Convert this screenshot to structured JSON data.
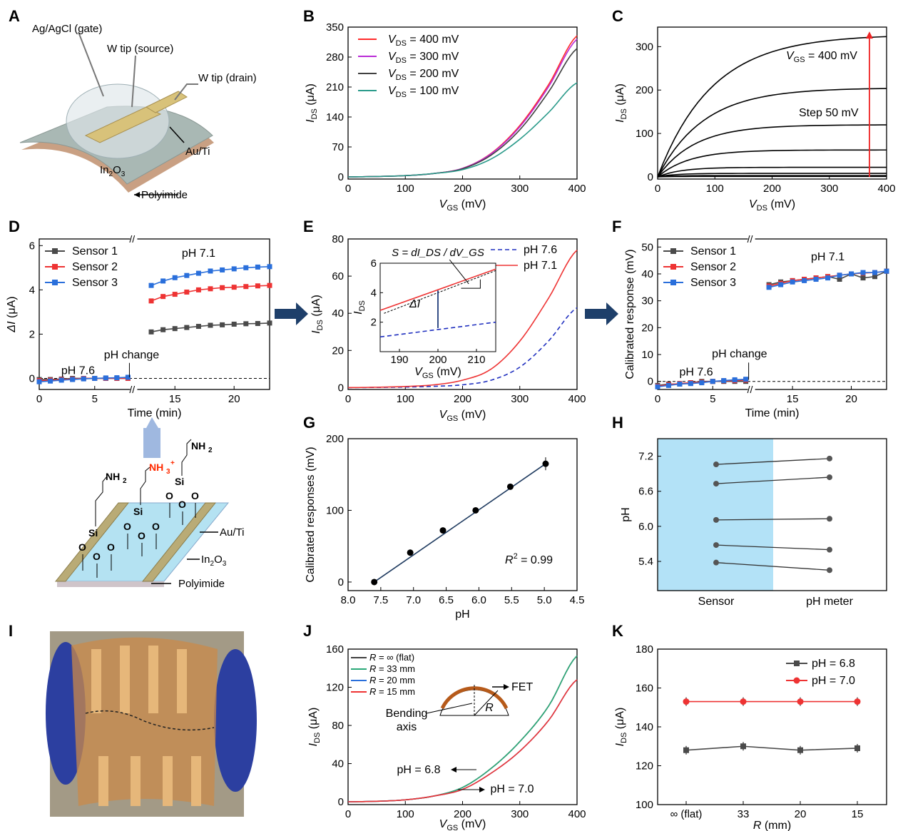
{
  "figure": {
    "panel_letters": [
      "A",
      "B",
      "C",
      "D",
      "E",
      "F",
      "G",
      "H",
      "I",
      "J",
      "K"
    ]
  },
  "panelA": {
    "labels": [
      "Ag/AgCl (gate)",
      "W tip (source)",
      "W tip (drain)",
      "Au/Ti",
      "In",
      "2",
      "O",
      "3",
      "Polyimide"
    ],
    "colors": {
      "substrate": "#c9a083",
      "film": "#a9b8b4",
      "gold": "#d8c27a"
    }
  },
  "panelD_schematic": {
    "labels": [
      "NH",
      "2",
      "NH",
      "3",
      "+",
      "Si",
      "O",
      "Au/Ti",
      "In",
      "2",
      "O",
      "3",
      "Polyimide"
    ],
    "colors": {
      "charged": "#ff2a00",
      "electrode": "#b9ab76",
      "film": "#b4e2f2"
    }
  },
  "chart_data": [
    {
      "id": "B",
      "type": "line",
      "xlabel": [
        "V",
        "GS",
        " (mV)"
      ],
      "ylabel": [
        "I",
        "DS",
        " (μA)"
      ],
      "xlim": [
        0,
        400
      ],
      "ylim": [
        -5,
        350
      ],
      "xticks": [
        0,
        100,
        200,
        300,
        400
      ],
      "yticks": [
        0,
        70,
        140,
        210,
        280,
        350
      ],
      "series": [
        {
          "name": [
            "V",
            "DS",
            " = 400 mV"
          ],
          "color": "#ff2b2b",
          "x": [
            0,
            50,
            100,
            150,
            200,
            250,
            300,
            350,
            400
          ],
          "y": [
            0,
            1,
            3,
            8,
            20,
            55,
            120,
            215,
            330
          ]
        },
        {
          "name": [
            "V",
            "DS",
            " = 300 mV"
          ],
          "color": "#b92bd6",
          "x": [
            0,
            50,
            100,
            150,
            200,
            250,
            300,
            350,
            400
          ],
          "y": [
            0,
            1,
            3,
            8,
            20,
            54,
            117,
            210,
            322
          ]
        },
        {
          "name": [
            "V",
            "DS",
            " = 200 mV"
          ],
          "color": "#404040",
          "x": [
            0,
            50,
            100,
            150,
            200,
            250,
            300,
            350,
            400
          ],
          "y": [
            0,
            1,
            3,
            8,
            19,
            51,
            110,
            198,
            300
          ]
        },
        {
          "name": [
            "V",
            "DS",
            " = 100 mV"
          ],
          "color": "#2a9a8a",
          "x": [
            0,
            50,
            100,
            150,
            200,
            250,
            300,
            350,
            400
          ],
          "y": [
            0,
            1,
            3,
            8,
            17,
            42,
            88,
            150,
            220
          ]
        }
      ]
    },
    {
      "id": "C",
      "type": "line",
      "xlabel": [
        "V",
        "DS",
        " (mV)"
      ],
      "ylabel": [
        "I",
        "DS",
        " (μA)"
      ],
      "xlim": [
        0,
        400
      ],
      "ylim": [
        -5,
        345
      ],
      "xticks": [
        0,
        100,
        200,
        300,
        400
      ],
      "yticks": [
        0,
        100,
        200,
        300
      ],
      "annotations": [
        [
          "V",
          "GS",
          " = 400 mV"
        ],
        [
          "Step 50 mV"
        ]
      ],
      "arrow_x": 370,
      "series": [
        {
          "name": "",
          "color": "#000000",
          "sat": 328,
          "k": 95
        },
        {
          "name": "",
          "color": "#000000",
          "sat": 205,
          "k": 80
        },
        {
          "name": "",
          "color": "#000000",
          "sat": 120,
          "k": 65
        },
        {
          "name": "",
          "color": "#000000",
          "sat": 62,
          "k": 55
        },
        {
          "name": "",
          "color": "#000000",
          "sat": 22,
          "k": 40
        },
        {
          "name": "",
          "color": "#000000",
          "sat": 8,
          "k": 30
        },
        {
          "name": "",
          "color": "#000000",
          "sat": 3,
          "k": 25
        },
        {
          "name": "",
          "color": "#000000",
          "sat": 1,
          "k": 20
        }
      ]
    },
    {
      "id": "D",
      "type": "scatter",
      "xlabel": [
        "Time (min)"
      ],
      "ylabel": [
        "ΔI",
        "",
        " (μA)"
      ],
      "xlim": [
        0,
        23
      ],
      "ylim": [
        -0.5,
        6.3
      ],
      "xticks": [
        0,
        5,
        15,
        20
      ],
      "yticks": [
        0,
        2,
        4,
        6
      ],
      "annotations": [
        "pH 7.6",
        "pH 7.1",
        "pH change"
      ],
      "series": [
        {
          "name": "Sensor 1",
          "color": "#4a4a4a",
          "x": [
            0,
            1,
            2,
            3,
            4,
            5,
            6,
            7,
            8,
            13,
            14,
            15,
            16,
            17,
            18,
            19,
            20,
            21,
            22,
            23
          ],
          "y": [
            -0.05,
            -0.05,
            -0.03,
            0,
            0,
            0,
            0,
            0,
            0,
            2.1,
            2.2,
            2.25,
            2.3,
            2.35,
            2.4,
            2.42,
            2.45,
            2.47,
            2.48,
            2.5
          ]
        },
        {
          "name": "Sensor 2",
          "color": "#ee3333",
          "x": [
            0,
            1,
            2,
            3,
            4,
            5,
            6,
            7,
            8,
            13,
            14,
            15,
            16,
            17,
            18,
            19,
            20,
            21,
            22,
            23
          ],
          "y": [
            -0.1,
            -0.08,
            -0.05,
            -0.03,
            0,
            0,
            0,
            0,
            0,
            3.5,
            3.7,
            3.8,
            3.9,
            4.0,
            4.05,
            4.1,
            4.12,
            4.15,
            4.18,
            4.2
          ]
        },
        {
          "name": "Sensor 3",
          "color": "#2a6fdb",
          "x": [
            0,
            1,
            2,
            3,
            4,
            5,
            6,
            7,
            8,
            13,
            14,
            15,
            16,
            17,
            18,
            19,
            20,
            21,
            22,
            23
          ],
          "y": [
            -0.15,
            -0.12,
            -0.08,
            -0.05,
            -0.02,
            0,
            0.02,
            0.03,
            0.05,
            4.2,
            4.4,
            4.55,
            4.65,
            4.75,
            4.85,
            4.9,
            4.95,
            5.0,
            5.03,
            5.05
          ]
        }
      ]
    },
    {
      "id": "E",
      "type": "line",
      "xlabel": [
        "V",
        "GS",
        " (mV)"
      ],
      "ylabel": [
        "I",
        "DS",
        " (μA)"
      ],
      "xlim": [
        0,
        400
      ],
      "ylim": [
        -1,
        80
      ],
      "xticks": [
        0,
        100,
        200,
        300,
        400
      ],
      "yticks": [
        0,
        20,
        40,
        60,
        80
      ],
      "series": [
        {
          "name": "pH 7.6",
          "color": "#1f2fbf",
          "dash": true,
          "x": [
            0,
            50,
            100,
            150,
            200,
            250,
            300,
            350,
            400
          ],
          "y": [
            0,
            0.1,
            0.3,
            0.7,
            1.5,
            4,
            11,
            25,
            43
          ]
        },
        {
          "name": "pH 7.1",
          "color": "#ee3333",
          "dash": false,
          "x": [
            0,
            50,
            100,
            150,
            200,
            250,
            300,
            350,
            400
          ],
          "y": [
            0,
            0.2,
            0.6,
            1.5,
            4,
            10,
            25,
            48,
            74
          ]
        }
      ],
      "inset": {
        "xlim": [
          185,
          215
        ],
        "ylim": [
          0,
          6
        ],
        "xticks": [
          190,
          200,
          210
        ],
        "yticks": [
          0,
          2,
          4,
          6
        ],
        "xlabel": [
          "V",
          "GS",
          " (mV)"
        ],
        "ylabel": [
          "I",
          "DS",
          ""
        ],
        "equation": "S = dI_DS / dV_GS",
        "delta_label": "ΔI",
        "red": {
          "x": [
            185,
            215
          ],
          "y": [
            2.8,
            5.6
          ]
        },
        "blue": {
          "x": [
            185,
            215
          ],
          "y": [
            1.0,
            2.0
          ]
        }
      }
    },
    {
      "id": "F",
      "type": "scatter",
      "xlabel": [
        "Time (min)"
      ],
      "ylabel": [
        "Calibrated response  (mV)"
      ],
      "xlim": [
        0,
        23
      ],
      "ylim": [
        -3,
        53
      ],
      "xticks": [
        0,
        5,
        15,
        20
      ],
      "yticks": [
        0,
        10,
        20,
        30,
        40,
        50
      ],
      "annotations": [
        "pH 7.6",
        "pH 7.1",
        "pH change"
      ],
      "series": [
        {
          "name": "Sensor 1",
          "color": "#4a4a4a",
          "x": [
            0,
            1,
            2,
            3,
            4,
            5,
            6,
            7,
            8,
            13,
            14,
            15,
            16,
            17,
            18,
            19,
            20,
            21,
            22,
            23
          ],
          "y": [
            -1.5,
            -1,
            -1,
            -0.5,
            0,
            0,
            0,
            0,
            0,
            36,
            37,
            37.5,
            38,
            38.5,
            39,
            38,
            40,
            38.5,
            39,
            41
          ]
        },
        {
          "name": "Sensor 2",
          "color": "#ee3333",
          "x": [
            0,
            1,
            2,
            3,
            4,
            5,
            6,
            7,
            8,
            13,
            14,
            15,
            16,
            17,
            18,
            19,
            20,
            21,
            22,
            23
          ],
          "y": [
            -1.8,
            -1.2,
            -0.8,
            -0.5,
            -0.3,
            0,
            0.2,
            0.3,
            0.5,
            35.5,
            36.5,
            37.5,
            38,
            38.5,
            39,
            39.5,
            40,
            40.3,
            40.5,
            41
          ]
        },
        {
          "name": "Sensor 3",
          "color": "#2a6fdb",
          "x": [
            0,
            1,
            2,
            3,
            4,
            5,
            6,
            7,
            8,
            13,
            14,
            15,
            16,
            17,
            18,
            19,
            20,
            21,
            22,
            23
          ],
          "y": [
            -2,
            -1.5,
            -1,
            -0.8,
            -0.5,
            0,
            0.3,
            0.6,
            0.8,
            35,
            36,
            37,
            37.5,
            38,
            38.5,
            39.5,
            40,
            40.5,
            40.5,
            41
          ]
        }
      ]
    },
    {
      "id": "G",
      "type": "scatter",
      "xlabel": [
        "pH"
      ],
      "ylabel": [
        "Calibrated responses (mV)"
      ],
      "xlim": [
        8.0,
        4.5
      ],
      "ylim": [
        -12,
        200
      ],
      "xticks": [
        8.0,
        7.5,
        7.0,
        6.5,
        6.0,
        5.5,
        5.0,
        4.5
      ],
      "yticks": [
        0,
        100,
        200
      ],
      "r2": [
        "R",
        "2",
        " = 0.99"
      ],
      "fit": {
        "x": [
          7.6,
          4.98
        ],
        "y": [
          0,
          165
        ],
        "color": "#1e3a5f"
      },
      "points": {
        "x": [
          7.6,
          7.05,
          6.55,
          6.05,
          5.52,
          4.98
        ],
        "y": [
          0,
          41,
          72,
          100,
          133,
          165
        ],
        "err": [
          3,
          2,
          2,
          2,
          3,
          9
        ]
      }
    },
    {
      "id": "H",
      "type": "scatter",
      "xlabel": [
        ""
      ],
      "ylabel": [
        "pH"
      ],
      "ylim": [
        4.9,
        7.5
      ],
      "yticks": [
        5.4,
        6.0,
        6.6,
        7.2
      ],
      "categories": [
        "Sensor",
        "pH meter"
      ],
      "shade_color": "#b3e2f7",
      "pairs": [
        [
          7.06,
          7.16
        ],
        [
          6.73,
          6.84
        ],
        [
          6.11,
          6.13
        ],
        [
          5.68,
          5.6
        ],
        [
          5.38,
          5.25
        ]
      ]
    },
    {
      "id": "J",
      "type": "line",
      "xlabel": [
        "V",
        "GS",
        " (mV)"
      ],
      "ylabel": [
        "I",
        "DS",
        " (μA)"
      ],
      "xlim": [
        0,
        400
      ],
      "ylim": [
        -3,
        160
      ],
      "xticks": [
        0,
        100,
        200,
        300,
        400
      ],
      "yticks": [
        0,
        40,
        80,
        120,
        160
      ],
      "annotations": [
        [
          "pH = 6.8"
        ],
        [
          "pH = 7.0"
        ],
        [
          "FET"
        ],
        [
          "Bending"
        ],
        [
          "axis"
        ],
        [
          "R"
        ]
      ],
      "series": [
        {
          "name": [
            "R",
            "",
            " = ∞ (flat)"
          ],
          "color": "#404040",
          "x": [
            0,
            50,
            100,
            150,
            200,
            250,
            300,
            350,
            400
          ],
          "y": [
            0,
            0.5,
            2,
            6,
            15,
            35,
            63,
            100,
            153
          ]
        },
        {
          "name": [
            "R",
            "",
            " = 33 mm"
          ],
          "color": "#2aa878",
          "x": [
            0,
            50,
            100,
            150,
            200,
            250,
            300,
            350,
            400
          ],
          "y": [
            0,
            0.5,
            2,
            6,
            15,
            35,
            63,
            100,
            153
          ]
        },
        {
          "name": [
            "R",
            "",
            " = 20 mm"
          ],
          "color": "#2a6fdb",
          "x": [
            0,
            50,
            100,
            150,
            200,
            250,
            300,
            350,
            400
          ],
          "y": [
            0,
            0.5,
            2,
            6,
            13,
            30,
            53,
            85,
            128
          ]
        },
        {
          "name": [
            "R",
            "",
            " = 15 mm"
          ],
          "color": "#ee3333",
          "x": [
            0,
            50,
            100,
            150,
            200,
            250,
            300,
            350,
            400
          ],
          "y": [
            0,
            0.5,
            2,
            6,
            13,
            30,
            53,
            85,
            128
          ]
        }
      ]
    },
    {
      "id": "K",
      "type": "line",
      "xlabel": [
        "R",
        "",
        " (mm)"
      ],
      "ylabel": [
        "I",
        "DS",
        " (μA)"
      ],
      "categories": [
        "∞ (flat)",
        "33",
        "20",
        "15"
      ],
      "ylim": [
        100,
        180
      ],
      "yticks": [
        100,
        120,
        140,
        160,
        180
      ],
      "series": [
        {
          "name": "pH = 6.8",
          "color": "#4a4a4a",
          "values": [
            128,
            130,
            128,
            129
          ]
        },
        {
          "name": "pH = 7.0",
          "color": "#ee3333",
          "values": [
            153,
            153,
            153,
            153
          ]
        }
      ]
    }
  ]
}
